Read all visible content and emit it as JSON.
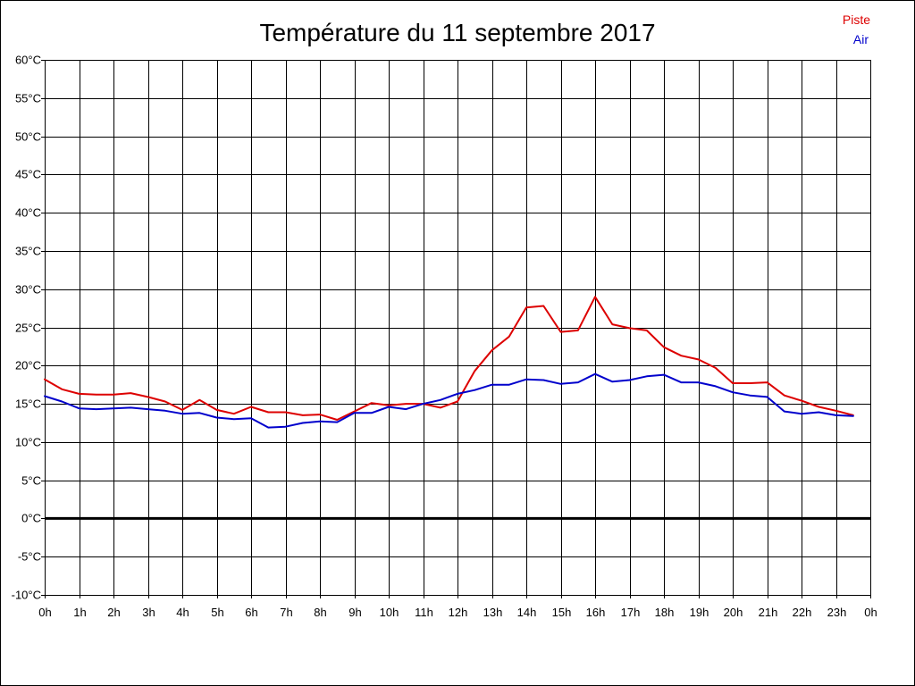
{
  "chart_data": {
    "type": "line",
    "title": "Température du 11 septembre 2017",
    "xlabel": "",
    "ylabel": "",
    "x_ticks": [
      "0h",
      "1h",
      "2h",
      "3h",
      "4h",
      "5h",
      "6h",
      "7h",
      "8h",
      "9h",
      "10h",
      "11h",
      "12h",
      "13h",
      "14h",
      "15h",
      "16h",
      "17h",
      "18h",
      "19h",
      "20h",
      "21h",
      "22h",
      "23h",
      "0h"
    ],
    "y_ticks": [
      "-10°C",
      "-5°C",
      "0°C",
      "5°C",
      "10°C",
      "15°C",
      "20°C",
      "25°C",
      "30°C",
      "35°C",
      "40°C",
      "45°C",
      "50°C",
      "55°C",
      "60°C"
    ],
    "xlim": [
      0,
      24
    ],
    "ylim": [
      -10,
      60
    ],
    "grid": true,
    "legend_position": "top-right",
    "zero_line": 0,
    "x": [
      0,
      0.5,
      1,
      1.5,
      2,
      2.5,
      3,
      3.5,
      4,
      4.5,
      5,
      5.5,
      6,
      6.5,
      7,
      7.5,
      8,
      8.5,
      9,
      9.5,
      10,
      10.5,
      11,
      11.5,
      12,
      12.5,
      13,
      13.5,
      14,
      14.5,
      15,
      15.5,
      16,
      16.5,
      17,
      17.5,
      18,
      18.5,
      19,
      19.5,
      20,
      20.5,
      21,
      21.5,
      22,
      22.5,
      23,
      23.5
    ],
    "series": [
      {
        "name": "Piste",
        "color": "#dd0000",
        "values": [
          18.2,
          16.9,
          16.3,
          16.2,
          16.2,
          16.4,
          15.9,
          15.3,
          14.2,
          15.5,
          14.2,
          13.7,
          14.6,
          13.9,
          13.9,
          13.5,
          13.6,
          12.9,
          14.0,
          15.1,
          14.8,
          15.0,
          15.0,
          14.5,
          15.3,
          19.3,
          22.0,
          23.8,
          27.6,
          27.8,
          24.4,
          24.6,
          29.0,
          25.4,
          24.9,
          24.6,
          22.4,
          21.3,
          20.8,
          19.7,
          17.7,
          17.7,
          17.8,
          16.1,
          15.4,
          14.6,
          14.1,
          13.5
        ]
      },
      {
        "name": "Air",
        "color": "#0000cc",
        "values": [
          16.0,
          15.3,
          14.4,
          14.3,
          14.4,
          14.5,
          14.3,
          14.1,
          13.7,
          13.8,
          13.2,
          13.0,
          13.1,
          11.9,
          12.0,
          12.5,
          12.7,
          12.6,
          13.8,
          13.8,
          14.6,
          14.3,
          15.0,
          15.5,
          16.3,
          16.8,
          17.5,
          17.5,
          18.2,
          18.1,
          17.6,
          17.8,
          18.9,
          17.9,
          18.1,
          18.6,
          18.8,
          17.8,
          17.8,
          17.3,
          16.5,
          16.1,
          15.9,
          14.0,
          13.7,
          13.9,
          13.5,
          13.4
        ]
      }
    ]
  }
}
